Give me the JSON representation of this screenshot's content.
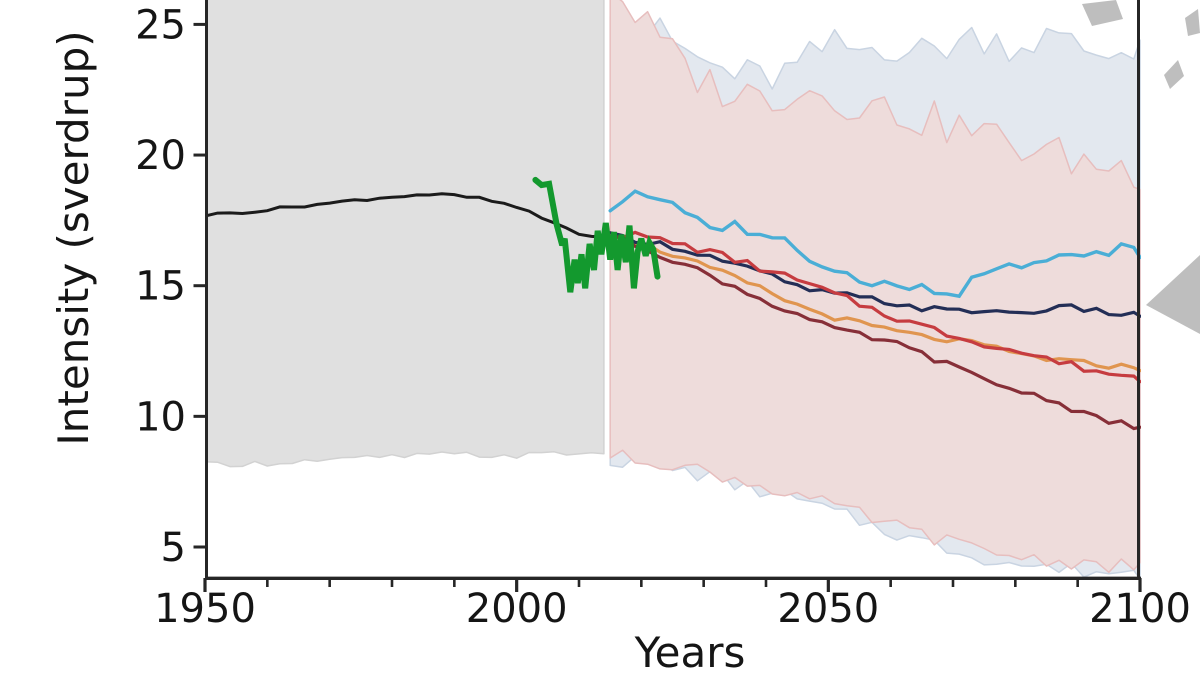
{
  "figure": {
    "xlabel": "Years",
    "ylabel": "Intensity (sverdrup)",
    "x_tick_labels": [
      "1950",
      "2000",
      "2050",
      "2100"
    ],
    "y_tick_labels": [
      "25",
      "20",
      "15",
      "10",
      "5"
    ]
  },
  "chart_data": {
    "type": "line",
    "title": "",
    "xlabel": "Years",
    "ylabel": "Intensity (sverdrup)",
    "xlim": [
      1950,
      2100
    ],
    "ylim_visible": [
      3.85,
      25.9
    ],
    "grid": false,
    "legend": "none",
    "x_ticks_major": [
      1950,
      2000,
      2050,
      2100
    ],
    "x_ticks_minor": [
      1960,
      1970,
      1980,
      1990,
      2010,
      2020,
      2030,
      2040,
      2060,
      2070,
      2080,
      2090
    ],
    "y_ticks": [
      25,
      20,
      15,
      10,
      5
    ],
    "bands": [
      {
        "name": "historical-ensemble-spread-gray",
        "x": [
          1950,
          1955,
          1960,
          1965,
          1970,
          1975,
          1980,
          1985,
          1990,
          1995,
          2000,
          2005,
          2010,
          2014
        ],
        "upper": 27,
        "lower": [
          8.15,
          8.2,
          8.2,
          8.3,
          8.3,
          8.4,
          8.45,
          8.5,
          8.55,
          8.5,
          8.5,
          8.55,
          8.6,
          8.55
        ],
        "jitter_upper": 0,
        "jitter_lower": 0.12,
        "seed": 1,
        "fill": "#e0e0e0",
        "stroke": "#d2d2d2"
      },
      {
        "name": "projection-spread-light-blue",
        "x": [
          2015,
          2020,
          2025,
          2030,
          2035,
          2040,
          2045,
          2050,
          2055,
          2060,
          2065,
          2070,
          2075,
          2080,
          2085,
          2090,
          2095,
          2100
        ],
        "upper": [
          26.0,
          25.0,
          24.3,
          23.5,
          23.1,
          22.9,
          23.3,
          24.2,
          24.0,
          24.3,
          23.9,
          24.3,
          24.6,
          24.2,
          24.5,
          24.1,
          23.8,
          24.4
        ],
        "lower": [
          8.35,
          8.2,
          8.0,
          7.75,
          7.4,
          7.1,
          6.8,
          6.4,
          6.0,
          5.6,
          5.2,
          4.9,
          4.6,
          4.35,
          4.2,
          4.1,
          4.05,
          4.0
        ],
        "jitter_upper": 0.75,
        "jitter_lower": 0.3,
        "seed": 2,
        "fill": "#e3e8ef",
        "stroke": "#c9d4e2"
      },
      {
        "name": "projection-spread-pink",
        "x": [
          2015,
          2020,
          2025,
          2030,
          2035,
          2040,
          2045,
          2050,
          2055,
          2060,
          2065,
          2070,
          2075,
          2080,
          2085,
          2090,
          2095,
          2100
        ],
        "upper": [
          26.6,
          25.1,
          23.8,
          22.8,
          22.4,
          22.2,
          22.6,
          22.3,
          22.0,
          21.7,
          21.4,
          21.1,
          20.8,
          20.4,
          20.1,
          19.8,
          19.6,
          19.4
        ],
        "lower": [
          8.5,
          8.35,
          8.2,
          7.9,
          7.6,
          7.3,
          7.0,
          6.6,
          6.25,
          5.85,
          5.5,
          5.15,
          4.85,
          4.65,
          4.5,
          4.4,
          4.3,
          4.2
        ],
        "jitter_upper": 0.8,
        "jitter_lower": 0.28,
        "seed": 3,
        "fill": "#eedcdb",
        "stroke": "#e7bebe"
      }
    ],
    "series": [
      {
        "name": "historical-mean-black",
        "color": "#1b1b1b",
        "width": 3,
        "x": [
          1950,
          1955,
          1960,
          1965,
          1970,
          1975,
          1980,
          1985,
          1990,
          1995,
          2000,
          2005,
          2010,
          2014
        ],
        "y": [
          17.7,
          17.8,
          17.9,
          18.05,
          18.15,
          18.3,
          18.4,
          18.5,
          18.45,
          18.3,
          18.0,
          17.5,
          17.0,
          16.8
        ],
        "step": 2,
        "jitter": 0.06,
        "seed": 4
      },
      {
        "name": "scenario-orange",
        "color": "#e0954f",
        "width": 3.2,
        "x": [
          2015,
          2020,
          2025,
          2030,
          2035,
          2040,
          2045,
          2050,
          2055,
          2060,
          2065,
          2070,
          2075,
          2080,
          2085,
          2090,
          2095,
          2100
        ],
        "y": [
          16.85,
          16.6,
          16.2,
          15.75,
          15.3,
          14.8,
          14.25,
          13.85,
          13.55,
          13.3,
          13.05,
          12.9,
          12.7,
          12.4,
          12.2,
          12.05,
          11.95,
          11.85
        ],
        "step": 2,
        "jitter": 0.12,
        "seed": 5
      },
      {
        "name": "scenario-navy",
        "color": "#232e56",
        "width": 3.2,
        "x": [
          2015,
          2020,
          2025,
          2030,
          2035,
          2040,
          2045,
          2050,
          2055,
          2060,
          2065,
          2070,
          2075,
          2080,
          2085,
          2090,
          2095,
          2100
        ],
        "y": [
          16.9,
          16.75,
          16.5,
          16.2,
          15.8,
          15.45,
          14.95,
          14.7,
          14.55,
          14.35,
          14.15,
          14.0,
          14.05,
          13.95,
          14.1,
          14.15,
          13.95,
          13.9
        ],
        "step": 2,
        "jitter": 0.13,
        "seed": 6
      },
      {
        "name": "scenario-red",
        "color": "#c63c40",
        "width": 3.2,
        "x": [
          2015,
          2020,
          2025,
          2030,
          2035,
          2040,
          2045,
          2050,
          2055,
          2060,
          2065,
          2070,
          2075,
          2080,
          2085,
          2090,
          2095,
          2100
        ],
        "y": [
          17.0,
          16.9,
          16.65,
          16.35,
          16.0,
          15.6,
          15.2,
          14.75,
          14.3,
          13.85,
          13.45,
          13.1,
          12.8,
          12.5,
          12.2,
          11.9,
          11.65,
          11.45
        ],
        "step": 2,
        "jitter": 0.15,
        "seed": 7
      },
      {
        "name": "scenario-dark-red",
        "color": "#872f38",
        "width": 3.2,
        "x": [
          2015,
          2020,
          2025,
          2030,
          2035,
          2040,
          2045,
          2050,
          2055,
          2060,
          2065,
          2070,
          2075,
          2080,
          2085,
          2090,
          2095,
          2100
        ],
        "y": [
          16.9,
          16.5,
          16.0,
          15.5,
          14.95,
          14.4,
          13.9,
          13.4,
          13.1,
          12.85,
          12.4,
          11.9,
          11.4,
          11.0,
          10.7,
          10.2,
          9.85,
          9.5
        ],
        "step": 2,
        "jitter": 0.12,
        "seed": 8
      },
      {
        "name": "scenario-light-blue",
        "color": "#4aaed6",
        "width": 3.4,
        "x": [
          2015,
          2017,
          2019,
          2021,
          2023,
          2026,
          2029,
          2032,
          2035,
          2038,
          2041,
          2044,
          2047,
          2050,
          2053,
          2056,
          2059,
          2062,
          2065,
          2068,
          2071,
          2074,
          2077,
          2080,
          2083,
          2086,
          2089,
          2092,
          2095,
          2098,
          2100
        ],
        "y": [
          17.7,
          18.3,
          18.65,
          18.4,
          18.45,
          18.0,
          17.6,
          17.1,
          17.35,
          16.9,
          16.7,
          16.6,
          16.0,
          15.8,
          15.4,
          15.25,
          15.1,
          14.8,
          15.0,
          14.6,
          14.75,
          15.35,
          15.7,
          15.75,
          15.7,
          16.0,
          16.25,
          16.1,
          16.3,
          16.6,
          16.1
        ],
        "step": 2,
        "jitter": 0.2,
        "seed": 9
      },
      {
        "name": "observations-green",
        "color": "#13992e",
        "width": 6,
        "points": [
          [
            2003.0,
            19.05
          ],
          [
            2004.0,
            18.85
          ],
          [
            2005.2,
            18.9
          ],
          [
            2006.4,
            17.35
          ],
          [
            2007.3,
            16.55
          ],
          [
            2007.7,
            16.8
          ],
          [
            2008.6,
            14.75
          ],
          [
            2009.3,
            16.0
          ],
          [
            2009.8,
            15.1
          ],
          [
            2010.4,
            16.2
          ],
          [
            2011.0,
            14.9
          ],
          [
            2011.7,
            16.6
          ],
          [
            2012.4,
            15.6
          ],
          [
            2013.0,
            17.1
          ],
          [
            2013.6,
            16.2
          ],
          [
            2014.3,
            17.4
          ],
          [
            2015.0,
            16.0
          ],
          [
            2015.6,
            17.05
          ],
          [
            2016.2,
            15.6
          ],
          [
            2016.8,
            16.95
          ],
          [
            2017.5,
            15.9
          ],
          [
            2018.1,
            17.3
          ],
          [
            2018.8,
            14.9
          ],
          [
            2019.4,
            16.3
          ],
          [
            2020.0,
            16.8
          ],
          [
            2020.7,
            16.15
          ],
          [
            2021.3,
            16.65
          ],
          [
            2021.9,
            16.4
          ],
          [
            2022.6,
            15.35
          ]
        ]
      }
    ],
    "watermark": {
      "color": "#b9b9b9",
      "polygons": [
        "1082,4 1116,0 1123,19 1092,26",
        "1185,18 1198,9 1200,33 1188,36",
        "1164,75 1178,60 1184,76 1170,89",
        "1146,305 1200,255 1200,334"
      ]
    },
    "axis_color": "#262626"
  }
}
